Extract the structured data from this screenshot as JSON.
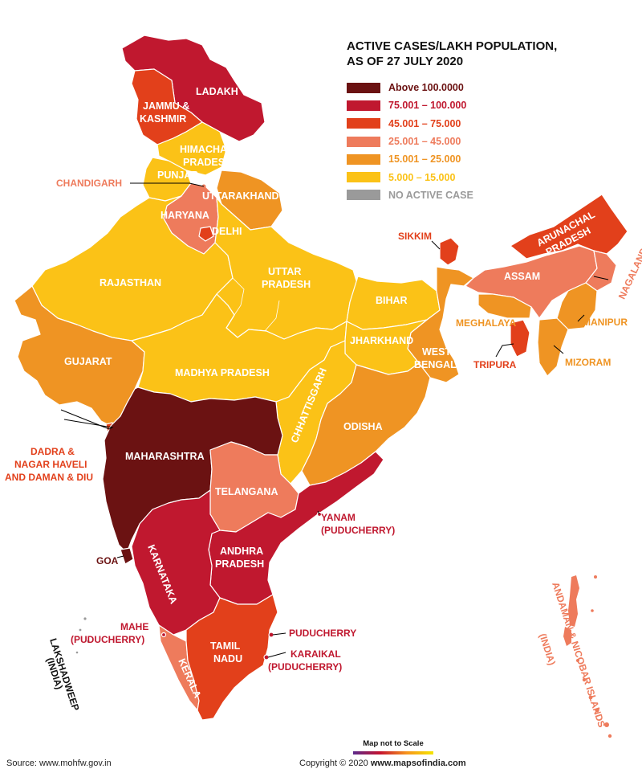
{
  "legend": {
    "title_line1": "ACTIVE CASES/LAKH POPULATION,",
    "title_line2": "AS OF 27 JULY 2020",
    "items": [
      {
        "label": "Above 100.0000",
        "color": "#6b1212"
      },
      {
        "label": "75.001 – 100.000",
        "color": "#c0182f"
      },
      {
        "label": "45.001 –  75.000",
        "color": "#e2401b"
      },
      {
        "label": "25.001 – 45.000",
        "color": "#ee7b5c"
      },
      {
        "label": "15.001 – 25.000",
        "color": "#ef9423"
      },
      {
        "label": "5.000 – 15.000",
        "color": "#fbc217"
      },
      {
        "label": "NO ACTIVE CASE",
        "color": "#9a9a9a"
      }
    ]
  },
  "regions": {
    "ladakh": {
      "name": "LADAKH",
      "category": "75.001 – 100.000"
    },
    "jammu_kashmir": {
      "name_line1": "JAMMU &",
      "name_line2": "KASHMIR",
      "category": "45.001 –  75.000"
    },
    "himachal": {
      "name_line1": "HIMACHAL",
      "name_line2": "PRADESH",
      "category": "5.000 – 15.000"
    },
    "punjab": {
      "name": "PUNJAB",
      "category": "5.000 – 15.000"
    },
    "chandigarh": {
      "name": "CHANDIGARH",
      "category": "25.001 – 45.000"
    },
    "uttarakhand": {
      "name": "UTTARAKHAND",
      "category": "15.001 – 25.000"
    },
    "haryana": {
      "name": "HARYANA",
      "category": "25.001 – 45.000"
    },
    "delhi": {
      "name": "DELHI",
      "category": "45.001 –  75.000"
    },
    "rajasthan": {
      "name": "RAJASTHAN",
      "category": "5.000 – 15.000"
    },
    "uttar_pradesh": {
      "name_line1": "UTTAR",
      "name_line2": "PRADESH",
      "category": "5.000 – 15.000"
    },
    "bihar": {
      "name": "BIHAR",
      "category": "5.000 – 15.000"
    },
    "sikkim": {
      "name": "SIKKIM",
      "category": "45.001 –  75.000"
    },
    "arunachal": {
      "name_line1": "ARUNACHAL",
      "name_line2": "PRADESH",
      "category": "45.001 –  75.000"
    },
    "assam": {
      "name": "ASSAM",
      "category": "25.001 – 45.000"
    },
    "nagaland": {
      "name": "NAGALAND",
      "category": "25.001 – 45.000"
    },
    "meghalaya": {
      "name": "MEGHALAYA",
      "category": "15.001 – 25.000"
    },
    "manipur": {
      "name": "MANIPUR",
      "category": "15.001 – 25.000"
    },
    "tripura": {
      "name": "TRIPURA",
      "category": "45.001 –  75.000"
    },
    "mizoram": {
      "name": "MIZORAM",
      "category": "15.001 – 25.000"
    },
    "gujarat": {
      "name": "GUJARAT",
      "category": "15.001 – 25.000"
    },
    "madhya_pradesh": {
      "name": "MADHYA PRADESH",
      "category": "5.000 – 15.000"
    },
    "jharkhand": {
      "name": "JHARKHAND",
      "category": "5.000 – 15.000"
    },
    "west_bengal": {
      "name_line1": "WEST",
      "name_line2": "BENGAL",
      "category": "15.001 – 25.000"
    },
    "chhattisgarh": {
      "name": "CHHATTISGARH",
      "category": "5.000 – 15.000"
    },
    "odisha": {
      "name": "ODISHA",
      "category": "15.001 – 25.000"
    },
    "dadra": {
      "name_line1": "DADRA &",
      "name_line2": "NAGAR HAVELI",
      "name_line3": "AND DAMAN & DIU",
      "category": "45.001 –  75.000"
    },
    "maharashtra": {
      "name": "MAHARASHTRA",
      "category": "Above 100.0000"
    },
    "telangana": {
      "name": "TELANGANA",
      "category": "25.001 – 45.000"
    },
    "yanam": {
      "name_line1": "YANAM",
      "name_line2": "(PUDUCHERRY)",
      "category": "75.001 – 100.000"
    },
    "goa": {
      "name": "GOA",
      "category": "Above 100.0000"
    },
    "karnataka": {
      "name": "KARNATAKA",
      "category": "75.001 – 100.000"
    },
    "andhra": {
      "name_line1": "ANDHRA",
      "name_line2": "PRADESH",
      "category": "75.001 – 100.000"
    },
    "mahe": {
      "name_line1": "MAHE",
      "name_line2": "(PUDUCHERRY)",
      "category": "75.001 – 100.000"
    },
    "lakshadweep": {
      "name_line1": "LAKSHADWEEP",
      "name_line2": "(INDIA)",
      "category": "NO ACTIVE CASE"
    },
    "puducherry": {
      "name": "PUDUCHERRY",
      "category": "75.001 – 100.000"
    },
    "tamil_nadu": {
      "name_line1": "TAMIL",
      "name_line2": "NADU",
      "category": "45.001 –  75.000"
    },
    "karaikal": {
      "name_line1": "KARAIKAL",
      "name_line2": "(PUDUCHERRY)",
      "category": "75.001 – 100.000"
    },
    "kerala": {
      "name": "KERALA",
      "category": "25.001 – 45.000"
    },
    "andaman": {
      "name_line1": "ANDAMAN & NICOBAR ISLANDS",
      "name_line2": "(INDIA)",
      "category": "25.001 – 45.000"
    }
  },
  "footer": {
    "source": "Source: www.mohfw.gov.in",
    "copyright_prefix": "Copyright © 2020 ",
    "copyright_site": "www.mapsofindia.com",
    "scale_note": "Map not to Scale"
  }
}
